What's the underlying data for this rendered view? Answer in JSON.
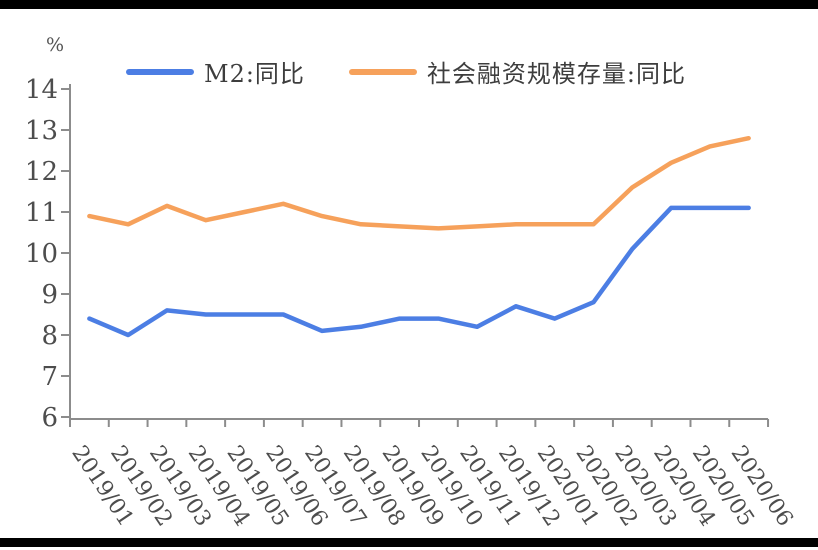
{
  "chart_data": {
    "type": "line",
    "title": "",
    "xlabel": "",
    "ylabel": "%",
    "ylim": [
      6,
      14
    ],
    "ytick_step": 1,
    "grid": false,
    "legend_position": "top",
    "axis_color": "#8c8c8c",
    "tick_label_color": "#4d4d4d",
    "categories": [
      "2019/01",
      "2019/02",
      "2019/03",
      "2019/04",
      "2019/05",
      "2019/06",
      "2019/07",
      "2019/08",
      "2019/09",
      "2019/10",
      "2019/11",
      "2019/12",
      "2020/01",
      "2020/02",
      "2020/03",
      "2020/04",
      "2020/05",
      "2020/06"
    ],
    "series": [
      {
        "name": "M2:同比",
        "color": "#4c7ee4",
        "values": [
          8.4,
          8.0,
          8.6,
          8.5,
          8.5,
          8.5,
          8.1,
          8.2,
          8.4,
          8.4,
          8.2,
          8.7,
          8.4,
          8.8,
          10.1,
          11.1,
          11.1,
          11.1
        ]
      },
      {
        "name": "社会融资规模存量:同比",
        "color": "#f6a15b",
        "values": [
          10.9,
          10.7,
          11.15,
          10.8,
          11.0,
          11.2,
          10.9,
          10.7,
          10.65,
          10.6,
          10.65,
          10.7,
          10.7,
          10.7,
          11.6,
          12.2,
          12.6,
          12.8
        ]
      }
    ]
  }
}
